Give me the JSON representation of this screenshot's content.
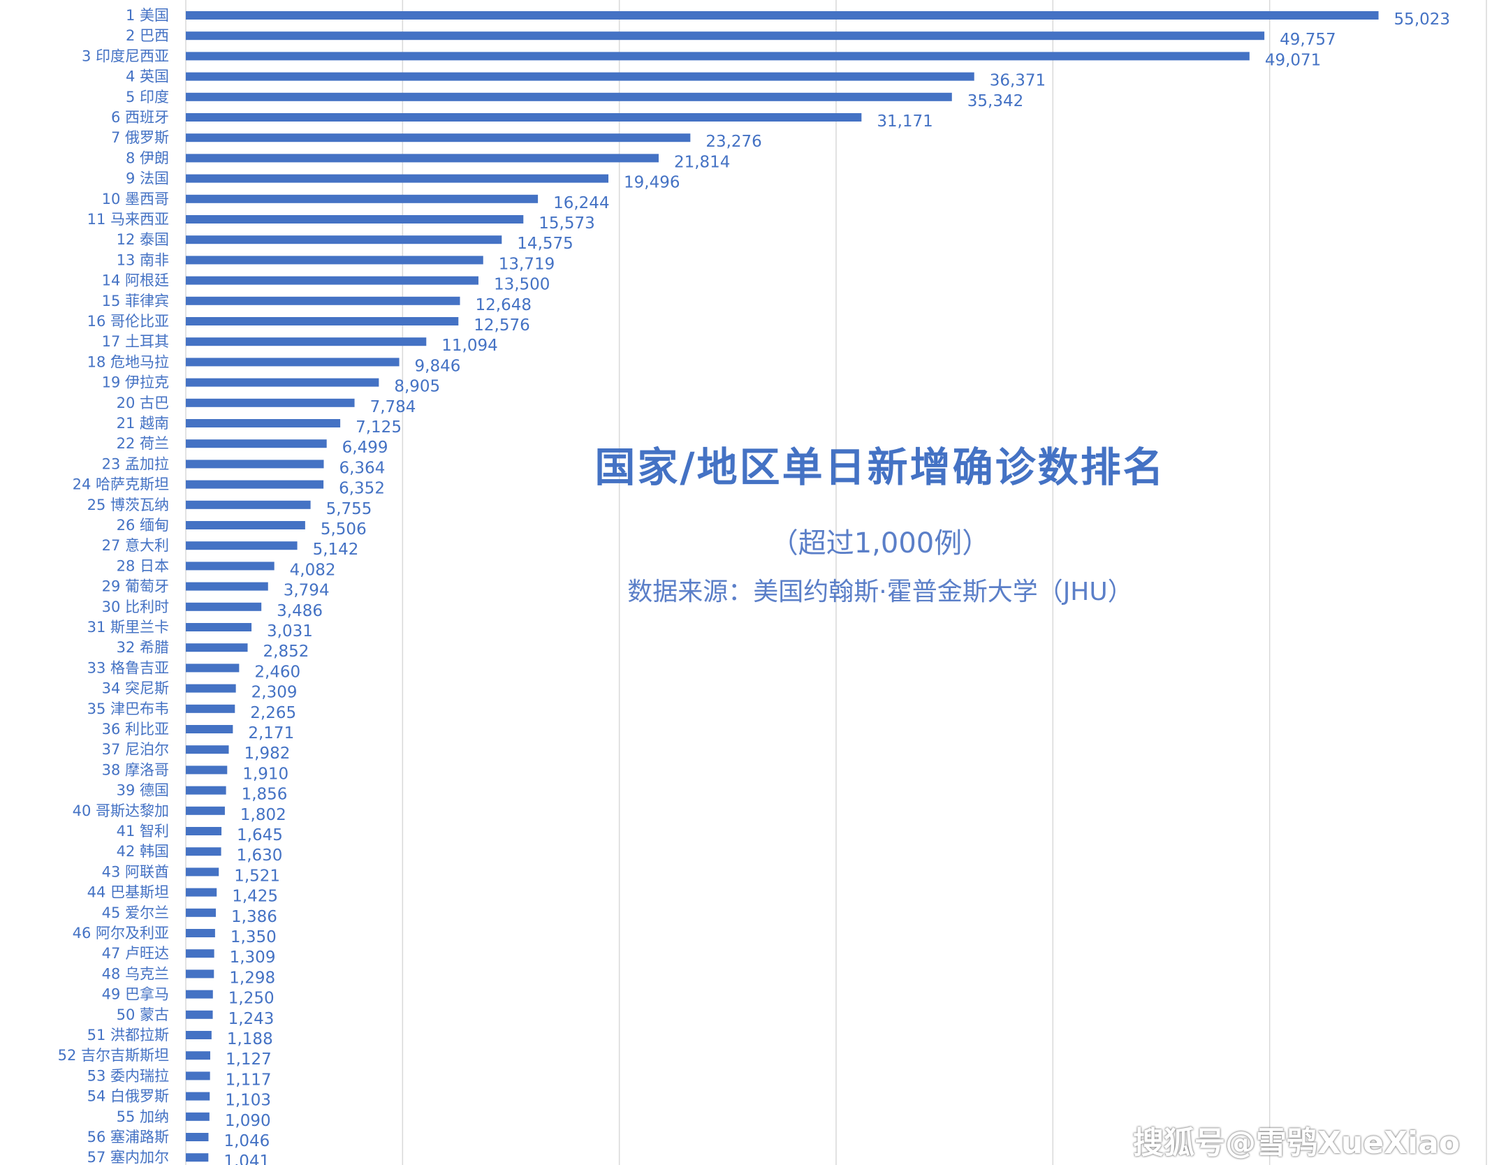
{
  "chart_data": {
    "type": "bar",
    "orientation": "horizontal",
    "title": "国家/地区单日新增确诊数排名",
    "subtitle": "（超过1,000例）",
    "source": "数据来源：美国约翰斯·霍普金斯大学（JHU）",
    "xlim": [
      0,
      60000
    ],
    "grid": true,
    "bar_color": "#4472c4",
    "categories": [
      "1 美国",
      "2 巴西",
      "3 印度尼西亚",
      "4 英国",
      "5 印度",
      "6 西班牙",
      "7 俄罗斯",
      "8 伊朗",
      "9 法国",
      "10 墨西哥",
      "11 马来西亚",
      "12 泰国",
      "13 南非",
      "14 阿根廷",
      "15 菲律宾",
      "16 哥伦比亚",
      "17 土耳其",
      "18 危地马拉",
      "19 伊拉克",
      "20 古巴",
      "21 越南",
      "22 荷兰",
      "23 孟加拉",
      "24 哈萨克斯坦",
      "25 博茨瓦纳",
      "26 缅甸",
      "27 意大利",
      "28 日本",
      "29 葡萄牙",
      "30 比利时",
      "31 斯里兰卡",
      "32 希腊",
      "33 格鲁吉亚",
      "34 突尼斯",
      "35 津巴布韦",
      "36 利比亚",
      "37 尼泊尔",
      "38 摩洛哥",
      "39 德国",
      "40 哥斯达黎加",
      "41 智利",
      "42 韩国",
      "43 阿联酋",
      "44 巴基斯坦",
      "45 爱尔兰",
      "46 阿尔及利亚",
      "47 卢旺达",
      "48 乌克兰",
      "49 巴拿马",
      "50 蒙古",
      "51 洪都拉斯",
      "52 吉尔吉斯斯坦",
      "53 委内瑞拉",
      "54 白俄罗斯",
      "55 加纳",
      "56 塞浦路斯",
      "57 塞内加尔"
    ],
    "values": [
      55023,
      49757,
      49071,
      36371,
      35342,
      31171,
      23276,
      21814,
      19496,
      16244,
      15573,
      14575,
      13719,
      13500,
      12648,
      12576,
      11094,
      9846,
      8905,
      7784,
      7125,
      6499,
      6364,
      6352,
      5755,
      5506,
      5142,
      4082,
      3794,
      3486,
      3031,
      2852,
      2460,
      2309,
      2265,
      2171,
      1982,
      1910,
      1856,
      1802,
      1645,
      1630,
      1521,
      1425,
      1386,
      1350,
      1309,
      1298,
      1250,
      1243,
      1188,
      1127,
      1117,
      1103,
      1090,
      1046,
      1041
    ],
    "value_labels": [
      "55,023",
      "49,757",
      "49,071",
      "36,371",
      "35,342",
      "31,171",
      "23,276",
      "21,814",
      "19,496",
      "16,244",
      "15,573",
      "14,575",
      "13,719",
      "13,500",
      "12,648",
      "12,576",
      "11,094",
      "9,846",
      "8,905",
      "7,784",
      "7,125",
      "6,499",
      "6,364",
      "6,352",
      "5,755",
      "5,506",
      "5,142",
      "4,082",
      "3,794",
      "3,486",
      "3,031",
      "2,852",
      "2,460",
      "2,309",
      "2,265",
      "2,171",
      "1,982",
      "1,910",
      "1,856",
      "1,802",
      "1,645",
      "1,630",
      "1,521",
      "1,425",
      "1,386",
      "1,350",
      "1,309",
      "1,298",
      "1,250",
      "1,243",
      "1,188",
      "1,127",
      "1,117",
      "1,103",
      "1,090",
      "1,046",
      "1,041"
    ]
  },
  "watermark": "搜狐号@雪鸮XueXiao"
}
